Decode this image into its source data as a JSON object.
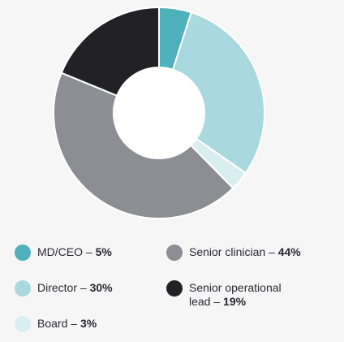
{
  "chart_data": {
    "type": "pie",
    "donut": true,
    "categories": [
      "MD/CEO",
      "Director",
      "Board",
      "Senior clinician",
      "Senior operational lead"
    ],
    "values": [
      5,
      30,
      3,
      44,
      19
    ],
    "unit": "%",
    "colors": [
      "#4fb1bb",
      "#a9d8de",
      "#d8eef1",
      "#8d8e94",
      "#222226"
    ],
    "legend_position": "bottom",
    "grid": false
  },
  "legend": [
    {
      "label": "MD/CEO –",
      "value": "5%",
      "color": "#4fb1bb"
    },
    {
      "label": "Senior clinician –",
      "value": "44%",
      "color": "#8d8e94"
    },
    {
      "label": "Director –",
      "value": "30%",
      "color": "#a9d8de"
    },
    {
      "label": "Senior operational lead –",
      "value": "19%",
      "color": "#222226"
    },
    {
      "label": "Board –",
      "value": "3%",
      "color": "#d8eef1"
    }
  ]
}
